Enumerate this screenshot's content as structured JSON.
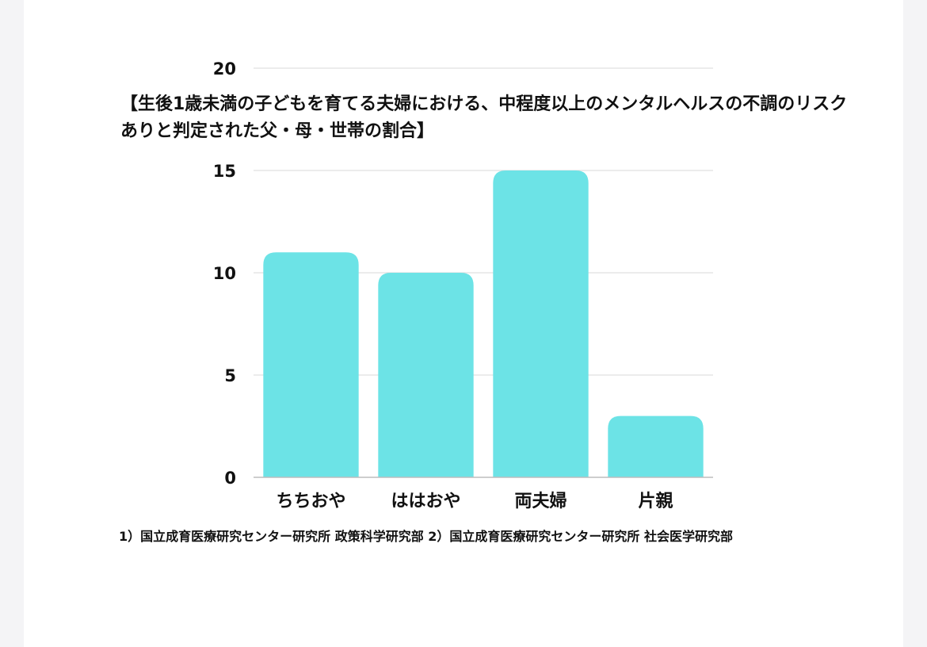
{
  "chart_data": {
    "type": "bar",
    "title": "【生後1歳未満の子どもを育てる夫婦における、中程度以上のメンタルヘルスの不調のリスクありと判定された父・母・世帯の割合】",
    "categories": [
      "ちちおや",
      "ははおや",
      "両夫婦",
      "片親"
    ],
    "values": [
      11,
      10,
      15,
      3
    ],
    "ylim": [
      0,
      20
    ],
    "yticks": [
      0,
      5,
      10,
      15,
      20
    ],
    "grid": true,
    "bar_color": "#6ce3e6",
    "grid_color": "#d9d9d9",
    "footnote": "1）国立成育医療研究センター研究所 政策科学研究部 2）国立成育医療研究センター研究所 社会医学研究部"
  }
}
